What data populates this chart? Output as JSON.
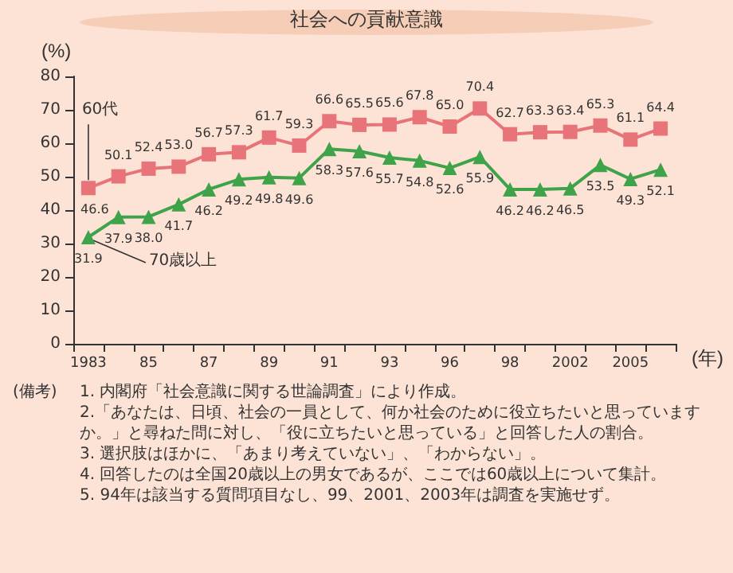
{
  "chart_data": {
    "type": "line",
    "title": "社会への貢献意識",
    "ylabel": "(%)",
    "xlabel": "(年)",
    "categories": [
      "1983",
      null,
      "85",
      null,
      "87",
      null,
      "89",
      null,
      "91",
      null,
      "93",
      null,
      "96",
      null,
      "98",
      null,
      "2002",
      null,
      "2005",
      null
    ],
    "series": [
      {
        "name": "60代",
        "color": "#e8747a",
        "marker": "square",
        "values": [
          46.6,
          50.1,
          52.4,
          53.0,
          56.7,
          57.3,
          61.7,
          59.3,
          66.6,
          65.5,
          65.6,
          67.8,
          65.0,
          70.4,
          62.7,
          63.3,
          63.4,
          65.3,
          61.1,
          64.4
        ],
        "value_labels": [
          "46.6",
          "50.1",
          "52.4",
          "53.0",
          "56.7",
          "57.3",
          "61.7",
          "59.3",
          "66.6",
          "65.5",
          "65.6",
          "67.8",
          "65.0",
          "70.4",
          "62.7",
          "63.3",
          "63.4",
          "65.3",
          "61.1",
          "64.4"
        ]
      },
      {
        "name": "70歳以上",
        "color": "#3fa34a",
        "marker": "triangle",
        "values": [
          31.9,
          37.9,
          38.0,
          41.7,
          46.2,
          49.2,
          49.8,
          49.6,
          58.3,
          57.6,
          55.7,
          54.8,
          52.6,
          55.9,
          46.2,
          46.2,
          46.5,
          53.5,
          49.3,
          52.1
        ],
        "value_labels": [
          "31.9",
          "37.9",
          "38.0",
          "41.7",
          "46.2",
          "49.2",
          "49.8",
          "49.6",
          "58.3",
          "57.6",
          "55.7",
          "54.8",
          "52.6",
          "55.9",
          "46.2",
          "46.2",
          "46.5",
          "53.5",
          "49.3",
          "52.1"
        ]
      }
    ],
    "ylim": [
      0,
      80
    ],
    "yticks": [
      0,
      10,
      20,
      30,
      40,
      50,
      60,
      70,
      80
    ],
    "grid": false,
    "legend": false,
    "annotations": [
      "(備考)",
      "1. 内閣府「社会意識に関する世論調査」により作成。",
      "2.「あなたは、日頃、社会の一員として、何か社会のために役立ちたいと思っていますか。」と尋ねた問に対し、「役に立ちたいと思っている」と回答した人の割合。",
      "3. 選択肢はほかに、「あまり考えていない」、「わからない」。",
      "4. 回答したのは全国20歳以上の男女であるが、ここでは60歳以上について集計。",
      "5. 94年は該当する質問項目なし、99、2001、2003年は調査を実施せず。"
    ]
  }
}
